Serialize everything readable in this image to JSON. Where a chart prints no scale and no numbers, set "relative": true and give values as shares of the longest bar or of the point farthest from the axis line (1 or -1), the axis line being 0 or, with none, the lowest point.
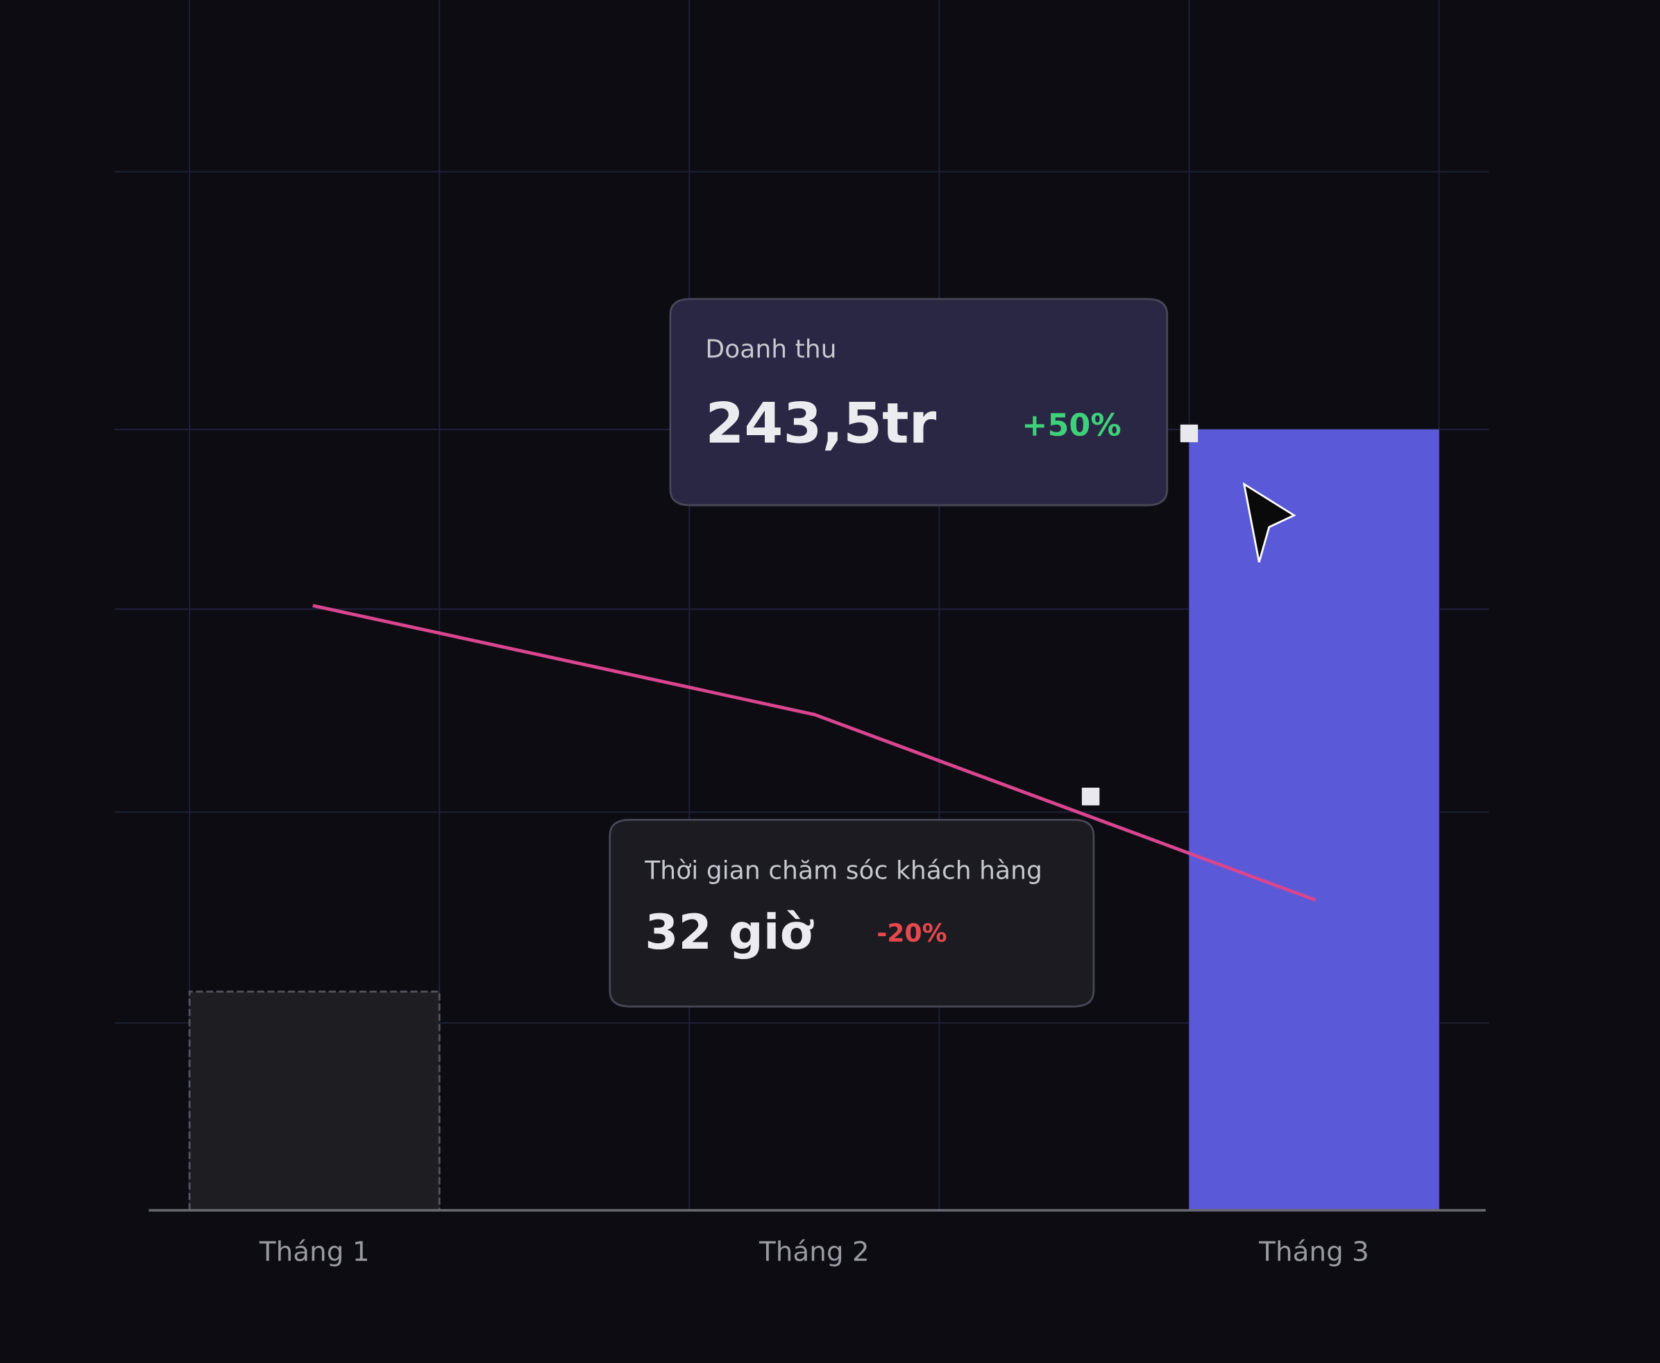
{
  "chart_data": {
    "type": "bar",
    "relative": true,
    "categories": [
      "Tháng 1",
      "Tháng 2",
      "Tháng 3"
    ],
    "series": [
      {
        "colors": [
          "#1e1e22",
          "#1e1e22",
          "#5a5ad8"
        ],
        "values": [
          0.28,
          null,
          1
        ]
      },
      {
        "type": "line",
        "color": "#d9468f",
        "values": [
          0.774,
          0.635,
          0.398
        ]
      }
    ],
    "annotations": [
      "Doanh thu",
      "243,5tr",
      "+50%",
      "Thời gian chăm sóc khách hàng",
      "32 giờ",
      "-20%"
    ],
    "grid": true,
    "legend": false,
    "marker": "none",
    "line_style": "solid"
  }
}
